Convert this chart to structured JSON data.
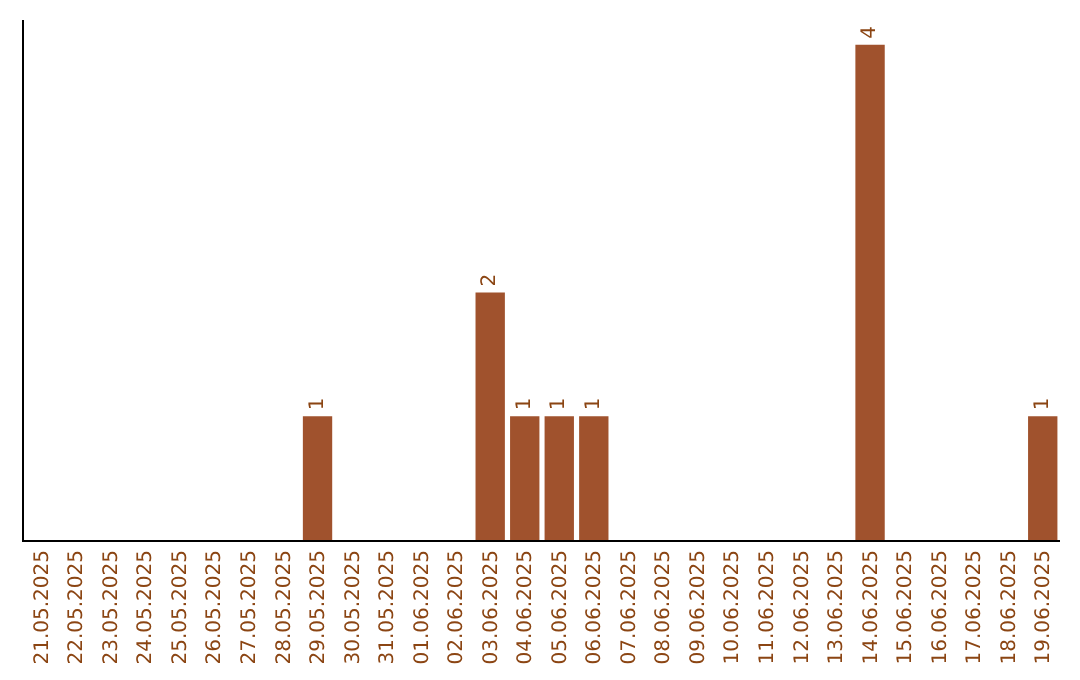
{
  "chart_data": {
    "type": "bar",
    "categories": [
      "21.05.2025",
      "22.05.2025",
      "23.05.2025",
      "24.05.2025",
      "25.05.2025",
      "26.05.2025",
      "27.05.2025",
      "28.05.2025",
      "29.05.2025",
      "30.05.2025",
      "31.05.2025",
      "01.06.2025",
      "02.06.2025",
      "03.06.2025",
      "04.06.2025",
      "05.06.2025",
      "06.06.2025",
      "07.06.2025",
      "08.06.2025",
      "09.06.2025",
      "10.06.2025",
      "11.06.2025",
      "12.06.2025",
      "13.06.2025",
      "14.06.2025",
      "15.06.2025",
      "16.06.2025",
      "17.06.2025",
      "18.06.2025",
      "19.06.2025"
    ],
    "values": [
      0,
      0,
      0,
      0,
      0,
      0,
      0,
      0,
      1,
      0,
      0,
      0,
      0,
      2,
      1,
      1,
      1,
      0,
      0,
      0,
      0,
      0,
      0,
      0,
      4,
      0,
      0,
      0,
      0,
      1
    ],
    "value_labels": [
      null,
      null,
      null,
      null,
      null,
      null,
      null,
      null,
      "1",
      null,
      null,
      null,
      null,
      "2",
      "1",
      "1",
      "1",
      null,
      null,
      null,
      null,
      null,
      null,
      null,
      "4",
      null,
      null,
      null,
      null,
      "1"
    ],
    "color": "#a0522d",
    "ylim": [
      0,
      4.2
    ],
    "tick_labels": "x",
    "grid": false,
    "legend": false
  }
}
